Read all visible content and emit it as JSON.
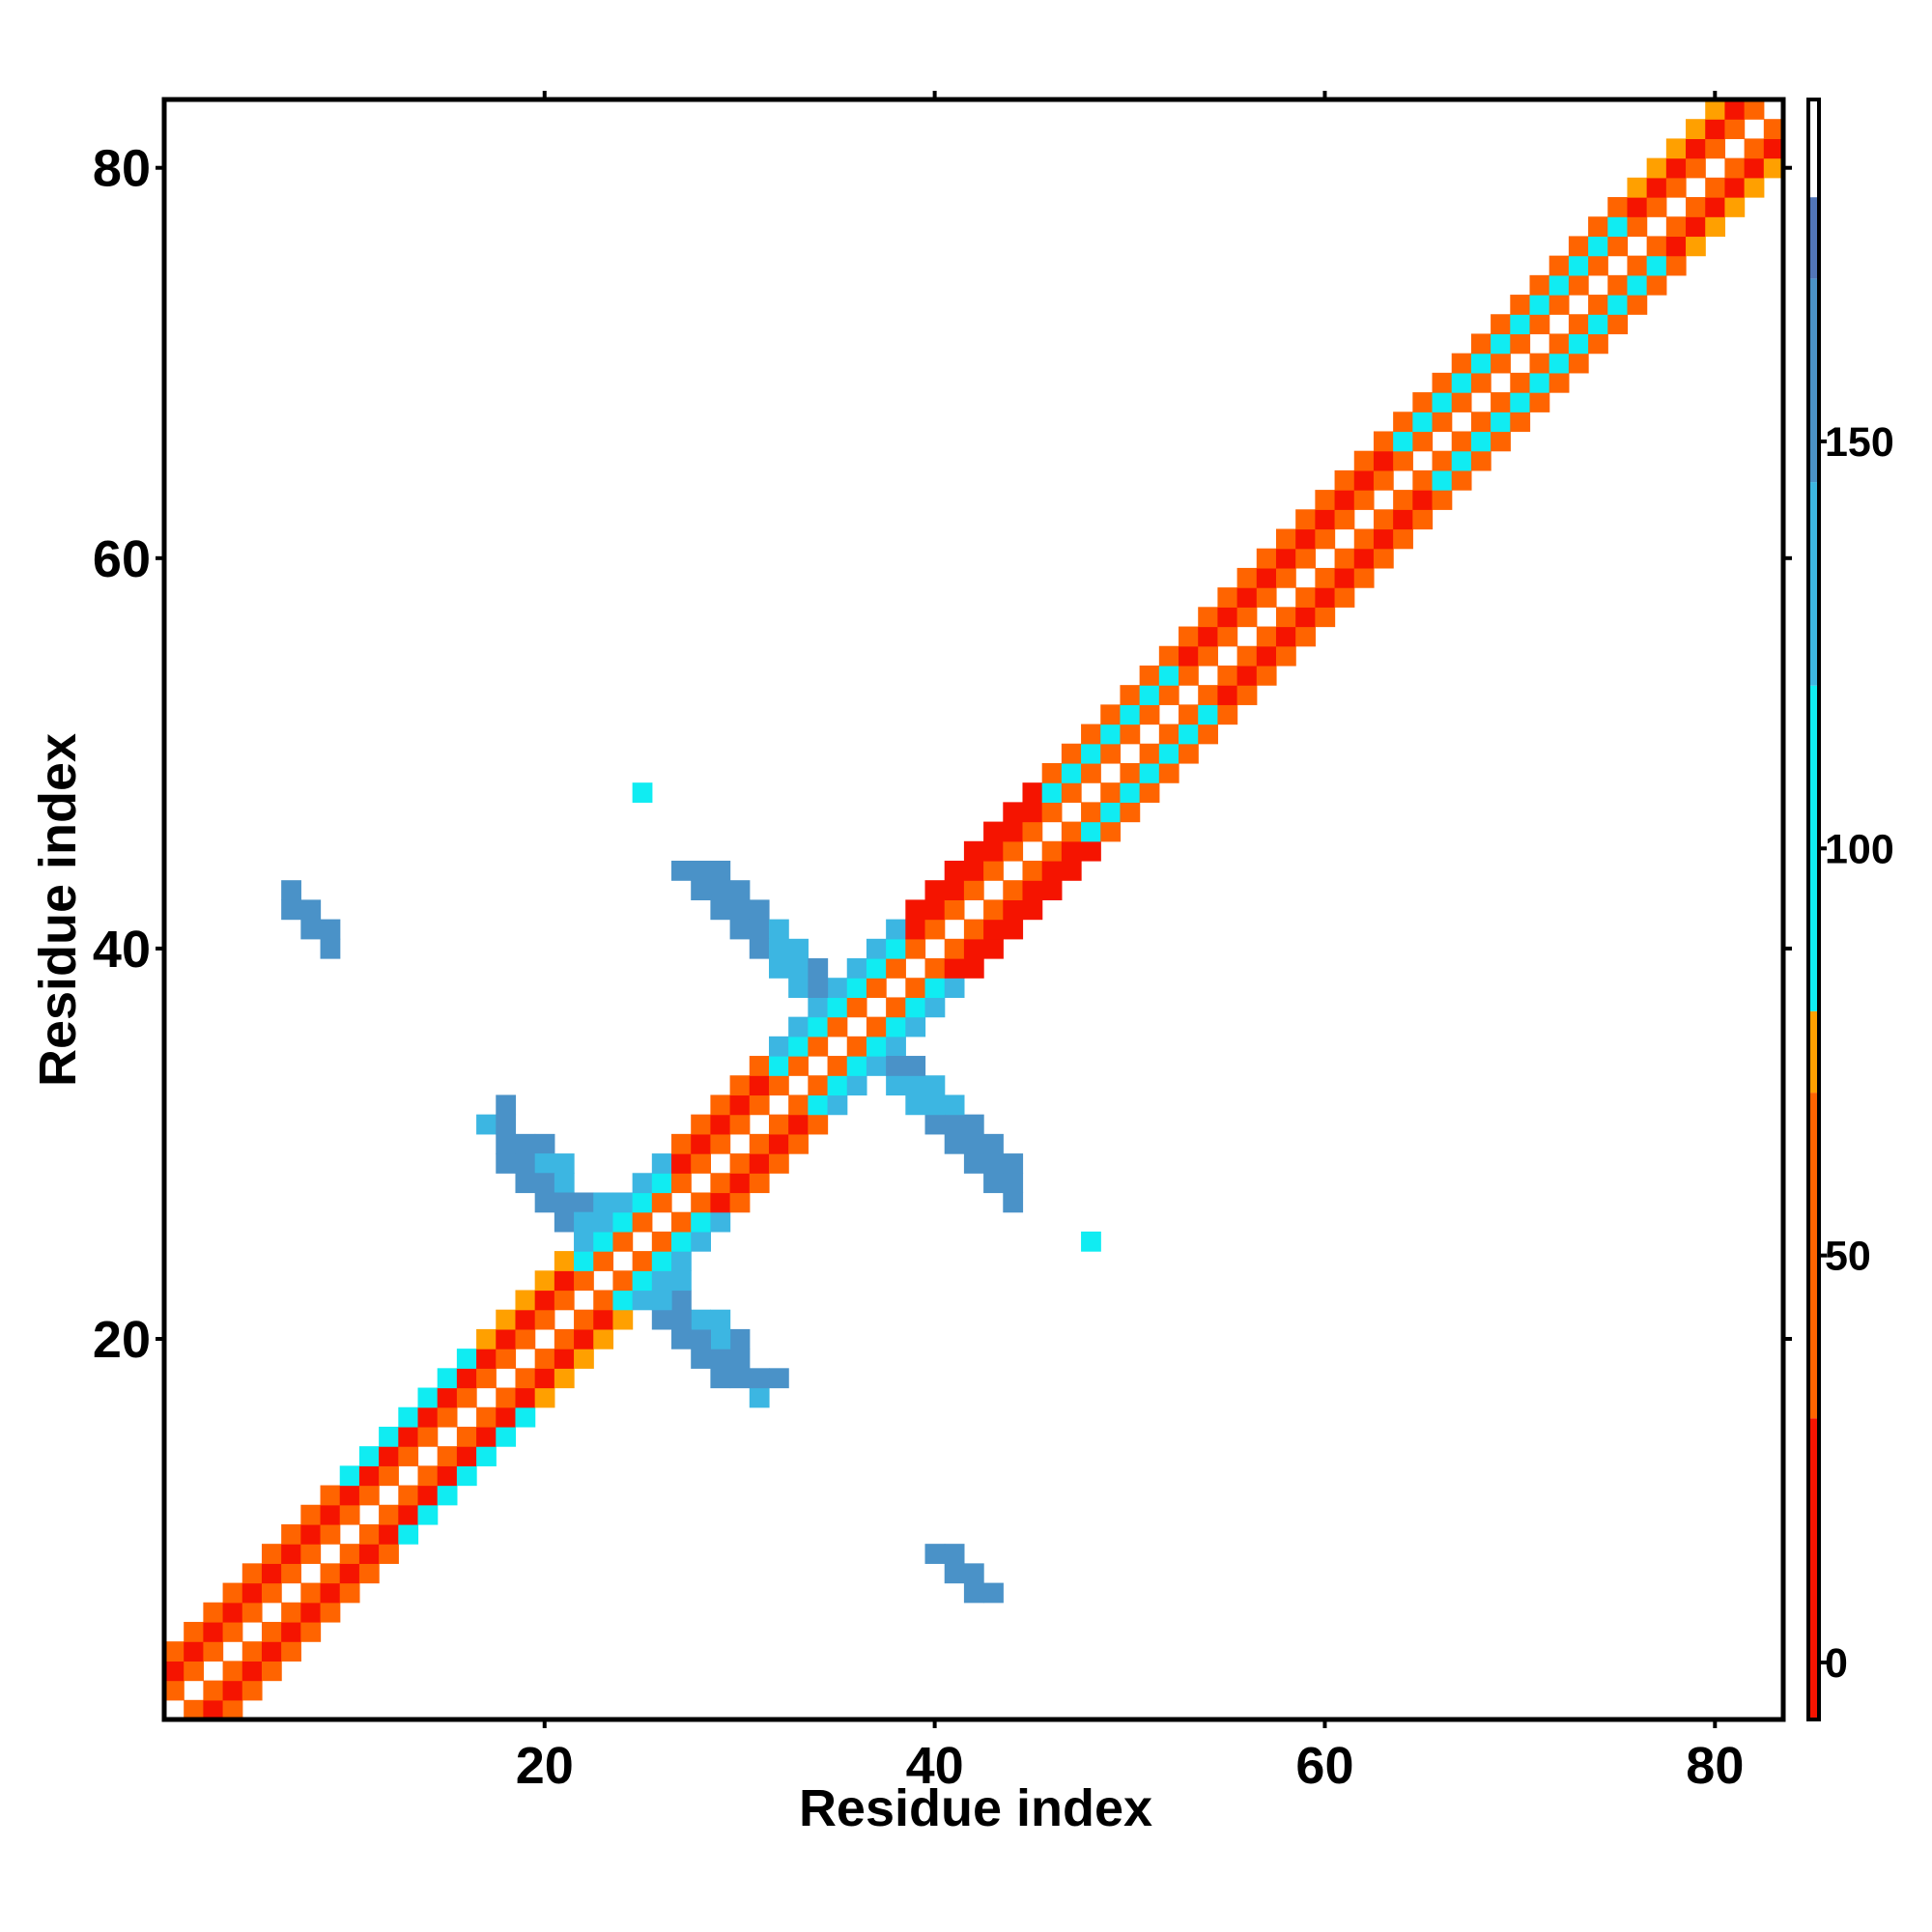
{
  "chart_data": {
    "type": "heatmap",
    "x_label": "Residue index",
    "y_label": "Residue index",
    "xlim": [
      0.5,
      83.5
    ],
    "ylim": [
      0.5,
      83.5
    ],
    "xticks": [
      20,
      40,
      60,
      80
    ],
    "yticks": [
      20,
      40,
      60,
      80
    ],
    "grid": false,
    "symmetric": true,
    "colorbar": {
      "lim": [
        -7,
        192
      ],
      "ticks": [
        0,
        50,
        100,
        150
      ],
      "levels": [
        {
          "from": -7,
          "to": 30,
          "color": "#f51400"
        },
        {
          "from": 30,
          "to": 70,
          "color": "#ff6400"
        },
        {
          "from": 70,
          "to": 80,
          "color": "#ffa000"
        },
        {
          "from": 80,
          "to": 120,
          "color": "#10ecf2"
        },
        {
          "from": 120,
          "to": 145,
          "color": "#3cb6e2"
        },
        {
          "from": 145,
          "to": 170,
          "color": "#4a92c8"
        },
        {
          "from": 170,
          "to": 180,
          "color": "#5276b8"
        },
        {
          "from": 180,
          "to": 192,
          "color": "#ffffff"
        }
      ]
    },
    "cells": [
      [
        1,
        2,
        45
      ],
      [
        1,
        3,
        10
      ],
      [
        1,
        4,
        45
      ],
      [
        2,
        3,
        45
      ],
      [
        2,
        4,
        10
      ],
      [
        2,
        5,
        45
      ],
      [
        3,
        4,
        45
      ],
      [
        3,
        5,
        10
      ],
      [
        3,
        6,
        45
      ],
      [
        4,
        5,
        45
      ],
      [
        4,
        6,
        10
      ],
      [
        4,
        7,
        45
      ],
      [
        5,
        6,
        45
      ],
      [
        5,
        7,
        10
      ],
      [
        5,
        8,
        45
      ],
      [
        6,
        7,
        45
      ],
      [
        6,
        8,
        10
      ],
      [
        6,
        9,
        45
      ],
      [
        7,
        8,
        45
      ],
      [
        7,
        9,
        10
      ],
      [
        7,
        10,
        45
      ],
      [
        8,
        9,
        45
      ],
      [
        8,
        10,
        10
      ],
      [
        8,
        11,
        45
      ],
      [
        9,
        10,
        45
      ],
      [
        9,
        11,
        10
      ],
      [
        9,
        12,
        45
      ],
      [
        10,
        11,
        45
      ],
      [
        10,
        12,
        10
      ],
      [
        10,
        13,
        95
      ],
      [
        11,
        12,
        45
      ],
      [
        11,
        13,
        10
      ],
      [
        11,
        14,
        95
      ],
      [
        12,
        13,
        45
      ],
      [
        12,
        14,
        10
      ],
      [
        12,
        15,
        95
      ],
      [
        13,
        14,
        45
      ],
      [
        13,
        15,
        10
      ],
      [
        13,
        16,
        95
      ],
      [
        14,
        15,
        45
      ],
      [
        14,
        16,
        10
      ],
      [
        14,
        17,
        95
      ],
      [
        15,
        16,
        45
      ],
      [
        15,
        17,
        10
      ],
      [
        15,
        18,
        95
      ],
      [
        16,
        17,
        45
      ],
      [
        16,
        18,
        10
      ],
      [
        16,
        19,
        95
      ],
      [
        17,
        18,
        45
      ],
      [
        17,
        19,
        10
      ],
      [
        17,
        20,
        75
      ],
      [
        18,
        19,
        45
      ],
      [
        18,
        20,
        10
      ],
      [
        18,
        21,
        75
      ],
      [
        19,
        20,
        45
      ],
      [
        19,
        21,
        10
      ],
      [
        19,
        22,
        75
      ],
      [
        20,
        21,
        45
      ],
      [
        20,
        22,
        10
      ],
      [
        20,
        23,
        75
      ],
      [
        21,
        22,
        45
      ],
      [
        21,
        23,
        10
      ],
      [
        21,
        24,
        75
      ],
      [
        22,
        23,
        45
      ],
      [
        22,
        24,
        100
      ],
      [
        22,
        25,
        140
      ],
      [
        23,
        24,
        45
      ],
      [
        23,
        25,
        100
      ],
      [
        23,
        26,
        140
      ],
      [
        24,
        25,
        45
      ],
      [
        24,
        26,
        100
      ],
      [
        24,
        27,
        140
      ],
      [
        25,
        26,
        45
      ],
      [
        25,
        27,
        100
      ],
      [
        25,
        28,
        140
      ],
      [
        26,
        27,
        45
      ],
      [
        26,
        28,
        100
      ],
      [
        26,
        29,
        140
      ],
      [
        27,
        28,
        45
      ],
      [
        27,
        29,
        10
      ],
      [
        27,
        30,
        45
      ],
      [
        28,
        29,
        45
      ],
      [
        28,
        30,
        10
      ],
      [
        28,
        31,
        45
      ],
      [
        29,
        30,
        45
      ],
      [
        29,
        31,
        10
      ],
      [
        29,
        32,
        45
      ],
      [
        30,
        31,
        45
      ],
      [
        30,
        32,
        10
      ],
      [
        30,
        33,
        45
      ],
      [
        31,
        32,
        45
      ],
      [
        31,
        33,
        10
      ],
      [
        31,
        34,
        45
      ],
      [
        32,
        33,
        45
      ],
      [
        32,
        34,
        100
      ],
      [
        32,
        35,
        140
      ],
      [
        33,
        34,
        45
      ],
      [
        33,
        35,
        100
      ],
      [
        33,
        36,
        140
      ],
      [
        34,
        35,
        45
      ],
      [
        34,
        36,
        100
      ],
      [
        34,
        37,
        140
      ],
      [
        35,
        36,
        45
      ],
      [
        35,
        37,
        100
      ],
      [
        35,
        38,
        140
      ],
      [
        36,
        37,
        45
      ],
      [
        36,
        38,
        100
      ],
      [
        36,
        39,
        140
      ],
      [
        37,
        38,
        45
      ],
      [
        37,
        39,
        100
      ],
      [
        37,
        40,
        140
      ],
      [
        38,
        39,
        45
      ],
      [
        38,
        40,
        100
      ],
      [
        38,
        41,
        140
      ],
      [
        39,
        40,
        45
      ],
      [
        39,
        41,
        10
      ],
      [
        39,
        42,
        10
      ],
      [
        40,
        41,
        45
      ],
      [
        40,
        42,
        10
      ],
      [
        40,
        43,
        10
      ],
      [
        41,
        42,
        45
      ],
      [
        41,
        43,
        10
      ],
      [
        41,
        44,
        10
      ],
      [
        42,
        43,
        45
      ],
      [
        42,
        44,
        10
      ],
      [
        42,
        45,
        10
      ],
      [
        43,
        44,
        45
      ],
      [
        43,
        45,
        10
      ],
      [
        43,
        46,
        10
      ],
      [
        44,
        45,
        45
      ],
      [
        44,
        46,
        10
      ],
      [
        44,
        47,
        10
      ],
      [
        45,
        46,
        45
      ],
      [
        45,
        47,
        10
      ],
      [
        45,
        48,
        10
      ],
      [
        46,
        47,
        45
      ],
      [
        46,
        48,
        95
      ],
      [
        46,
        49,
        45
      ],
      [
        47,
        48,
        45
      ],
      [
        47,
        49,
        95
      ],
      [
        47,
        50,
        45
      ],
      [
        48,
        49,
        45
      ],
      [
        48,
        50,
        95
      ],
      [
        48,
        51,
        45
      ],
      [
        49,
        50,
        45
      ],
      [
        49,
        51,
        95
      ],
      [
        49,
        52,
        45
      ],
      [
        50,
        51,
        45
      ],
      [
        50,
        52,
        95
      ],
      [
        50,
        53,
        45
      ],
      [
        51,
        52,
        45
      ],
      [
        51,
        53,
        95
      ],
      [
        51,
        54,
        45
      ],
      [
        52,
        53,
        45
      ],
      [
        52,
        54,
        95
      ],
      [
        52,
        55,
        45
      ],
      [
        53,
        54,
        45
      ],
      [
        53,
        55,
        10
      ],
      [
        53,
        56,
        45
      ],
      [
        54,
        55,
        45
      ],
      [
        54,
        56,
        10
      ],
      [
        54,
        57,
        45
      ],
      [
        55,
        56,
        45
      ],
      [
        55,
        57,
        10
      ],
      [
        55,
        58,
        45
      ],
      [
        56,
        57,
        45
      ],
      [
        56,
        58,
        10
      ],
      [
        56,
        59,
        45
      ],
      [
        57,
        58,
        45
      ],
      [
        57,
        59,
        10
      ],
      [
        57,
        60,
        45
      ],
      [
        58,
        59,
        45
      ],
      [
        58,
        60,
        10
      ],
      [
        58,
        61,
        45
      ],
      [
        59,
        60,
        45
      ],
      [
        59,
        61,
        10
      ],
      [
        59,
        62,
        45
      ],
      [
        60,
        61,
        45
      ],
      [
        60,
        62,
        10
      ],
      [
        60,
        63,
        45
      ],
      [
        61,
        62,
        45
      ],
      [
        61,
        63,
        10
      ],
      [
        61,
        64,
        45
      ],
      [
        62,
        63,
        45
      ],
      [
        62,
        64,
        10
      ],
      [
        62,
        65,
        45
      ],
      [
        63,
        64,
        45
      ],
      [
        63,
        65,
        10
      ],
      [
        63,
        66,
        45
      ],
      [
        64,
        65,
        45
      ],
      [
        64,
        66,
        95
      ],
      [
        64,
        67,
        45
      ],
      [
        65,
        66,
        45
      ],
      [
        65,
        67,
        95
      ],
      [
        65,
        68,
        45
      ],
      [
        66,
        67,
        45
      ],
      [
        66,
        68,
        95
      ],
      [
        66,
        69,
        45
      ],
      [
        67,
        68,
        45
      ],
      [
        67,
        69,
        95
      ],
      [
        67,
        70,
        45
      ],
      [
        68,
        69,
        45
      ],
      [
        68,
        70,
        95
      ],
      [
        68,
        71,
        45
      ],
      [
        69,
        70,
        45
      ],
      [
        69,
        71,
        95
      ],
      [
        69,
        72,
        45
      ],
      [
        70,
        71,
        45
      ],
      [
        70,
        72,
        95
      ],
      [
        70,
        73,
        45
      ],
      [
        71,
        72,
        45
      ],
      [
        71,
        73,
        95
      ],
      [
        71,
        74,
        45
      ],
      [
        72,
        73,
        45
      ],
      [
        72,
        74,
        95
      ],
      [
        72,
        75,
        45
      ],
      [
        73,
        74,
        45
      ],
      [
        73,
        75,
        95
      ],
      [
        73,
        76,
        45
      ],
      [
        74,
        75,
        45
      ],
      [
        74,
        76,
        95
      ],
      [
        74,
        77,
        45
      ],
      [
        75,
        76,
        45
      ],
      [
        75,
        77,
        95
      ],
      [
        75,
        78,
        45
      ],
      [
        76,
        77,
        45
      ],
      [
        76,
        78,
        10
      ],
      [
        76,
        79,
        75
      ],
      [
        77,
        78,
        45
      ],
      [
        77,
        79,
        10
      ],
      [
        77,
        80,
        75
      ],
      [
        78,
        79,
        45
      ],
      [
        78,
        80,
        10
      ],
      [
        78,
        81,
        75
      ],
      [
        79,
        80,
        45
      ],
      [
        79,
        81,
        10
      ],
      [
        79,
        82,
        75
      ],
      [
        80,
        81,
        45
      ],
      [
        80,
        82,
        10
      ],
      [
        80,
        83,
        75
      ],
      [
        81,
        82,
        45
      ],
      [
        81,
        83,
        10
      ],
      [
        82,
        83,
        45
      ],
      [
        17,
        31,
        120
      ],
      [
        18,
        32,
        150
      ],
      [
        18,
        31,
        150
      ],
      [
        18,
        30,
        150
      ],
      [
        19,
        30,
        150
      ],
      [
        20,
        30,
        150
      ],
      [
        18,
        29,
        150
      ],
      [
        19,
        29,
        150
      ],
      [
        20,
        29,
        130
      ],
      [
        21,
        29,
        130
      ],
      [
        19,
        28,
        150
      ],
      [
        20,
        28,
        150
      ],
      [
        21,
        28,
        130
      ],
      [
        20,
        27,
        150
      ],
      [
        21,
        27,
        150
      ],
      [
        22,
        27,
        150
      ],
      [
        23,
        27,
        130
      ],
      [
        21,
        26,
        150
      ],
      [
        22,
        26,
        130
      ],
      [
        27,
        44,
        150
      ],
      [
        28,
        44,
        150
      ],
      [
        29,
        44,
        150
      ],
      [
        28,
        43,
        150
      ],
      [
        29,
        43,
        150
      ],
      [
        30,
        43,
        150
      ],
      [
        29,
        42,
        150
      ],
      [
        30,
        42,
        150
      ],
      [
        31,
        42,
        150
      ],
      [
        30,
        41,
        150
      ],
      [
        31,
        41,
        150
      ],
      [
        32,
        41,
        130
      ],
      [
        31,
        40,
        150
      ],
      [
        32,
        40,
        130
      ],
      [
        33,
        40,
        130
      ],
      [
        32,
        39,
        130
      ],
      [
        33,
        39,
        130
      ],
      [
        34,
        39,
        150
      ],
      [
        33,
        38,
        130
      ],
      [
        34,
        38,
        150
      ],
      [
        7,
        43,
        150
      ],
      [
        7,
        42,
        150
      ],
      [
        8,
        42,
        150
      ],
      [
        8,
        41,
        150
      ],
      [
        9,
        41,
        150
      ],
      [
        9,
        40,
        150
      ],
      [
        25,
        48,
        100
      ]
    ]
  }
}
